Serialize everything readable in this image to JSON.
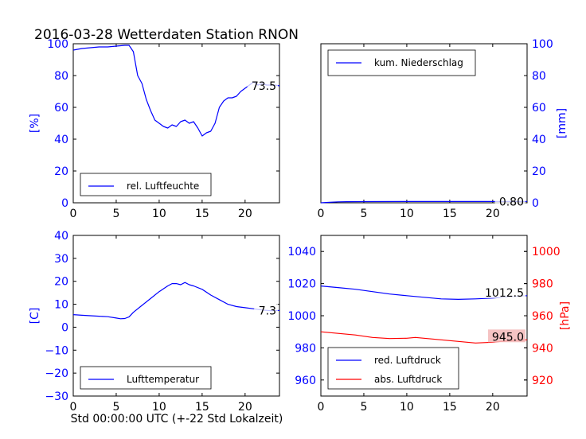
{
  "figure": {
    "title": "2016-03-28 Wetterdaten Station RNON",
    "xlabel": "Std 00:00:00 UTC (+-22 Std Lokalzeit)",
    "colors": {
      "blue": "#0000ff",
      "red": "#ff0000",
      "black": "#000000"
    }
  },
  "chart_data": [
    {
      "type": "line",
      "panel": "humidity",
      "ylabel": "[%]",
      "xlim": [
        0,
        24
      ],
      "ylim": [
        0,
        100
      ],
      "xticks": [
        0,
        5,
        10,
        15,
        20
      ],
      "yticks": [
        0,
        20,
        40,
        60,
        80,
        100
      ],
      "legend_position": "lower-left",
      "last_value_label": "73.5",
      "series": [
        {
          "name": "rel. Luftfeuchte",
          "color": "#0000ff",
          "x": [
            0,
            1,
            2,
            3,
            4,
            5,
            6,
            6.5,
            7,
            7.5,
            8,
            8.5,
            9,
            9.5,
            10,
            10.5,
            11,
            11.5,
            12,
            12.5,
            13,
            13.5,
            14,
            14.5,
            15,
            15.5,
            16,
            16.5,
            17,
            17.5,
            18,
            18.5,
            19,
            19.5,
            20,
            20.5,
            21,
            21.5,
            22,
            22.5,
            23,
            23.5,
            24
          ],
          "y": [
            96,
            97,
            97.5,
            98,
            98,
            98.5,
            99,
            99,
            95,
            80,
            75,
            65,
            58,
            52,
            50,
            48,
            47,
            49,
            48,
            51,
            52,
            50,
            51,
            47,
            42,
            44,
            45,
            50,
            60,
            64,
            66,
            66,
            67,
            70,
            72,
            74,
            76,
            74,
            75,
            74,
            74,
            74,
            73.5
          ]
        }
      ]
    },
    {
      "type": "line",
      "panel": "precipitation",
      "ylabel": "[mm]",
      "xlim": [
        0,
        24
      ],
      "ylim": [
        0,
        100
      ],
      "xticks": [
        0,
        5,
        10,
        15,
        20
      ],
      "yticks": [
        0,
        20,
        40,
        60,
        80,
        100
      ],
      "legend_position": "top-left",
      "last_value_label": "0.80",
      "series": [
        {
          "name": "kum. Niederschlag",
          "color": "#0000ff",
          "x": [
            0,
            1,
            2,
            3,
            5,
            10,
            15,
            20,
            24
          ],
          "y": [
            0,
            0.3,
            0.6,
            0.7,
            0.75,
            0.78,
            0.8,
            0.8,
            0.8
          ]
        }
      ]
    },
    {
      "type": "line",
      "panel": "temperature",
      "ylabel": "[C]",
      "xlim": [
        0,
        24
      ],
      "ylim": [
        -30,
        40
      ],
      "xticks": [
        0,
        5,
        10,
        15,
        20
      ],
      "yticks": [
        -30,
        -20,
        -10,
        0,
        10,
        20,
        30,
        40
      ],
      "legend_position": "lower-left",
      "last_value_label": "7.3",
      "series": [
        {
          "name": "Lufttemperatur",
          "color": "#0000ff",
          "x": [
            0,
            1,
            2,
            3,
            4,
            5,
            5.5,
            6,
            6.5,
            7,
            8,
            9,
            10,
            11,
            11.5,
            12,
            12.5,
            13,
            13.5,
            14,
            15,
            16,
            17,
            18,
            19,
            20,
            21,
            22,
            23,
            24
          ],
          "y": [
            5.5,
            5.2,
            5,
            4.8,
            4.6,
            4,
            3.7,
            3.8,
            4.5,
            6.5,
            9.5,
            12.5,
            15.5,
            18,
            19,
            19,
            18.5,
            19.5,
            18.5,
            18,
            16.5,
            14,
            12,
            10,
            9,
            8.5,
            8,
            7.5,
            7.2,
            7.3
          ]
        }
      ]
    },
    {
      "type": "line",
      "panel": "pressure",
      "ylim": [
        950,
        1050
      ],
      "yticks": [
        960,
        980,
        1000,
        1020,
        1040
      ],
      "y2label": "[hPa]",
      "y2lim": [
        910,
        1010
      ],
      "y2ticks": [
        920,
        940,
        960,
        980,
        1000
      ],
      "xlim": [
        0,
        24
      ],
      "xticks": [
        0,
        5,
        10,
        15,
        20
      ],
      "legend_position": "lower-left",
      "last_value_labels": [
        "1012.5",
        "945.0"
      ],
      "series": [
        {
          "name": "red. Luftdruck",
          "color": "#0000ff",
          "axis": "left",
          "x": [
            0,
            2,
            4,
            6,
            8,
            10,
            12,
            14,
            16,
            18,
            20,
            22,
            24
          ],
          "y": [
            1018.5,
            1017.5,
            1016.5,
            1015,
            1013.5,
            1012.5,
            1011.5,
            1010.5,
            1010.2,
            1010.5,
            1011,
            1011.8,
            1012.5
          ]
        },
        {
          "name": "abs. Luftdruck",
          "color": "#ff0000",
          "axis": "right",
          "x": [
            0,
            2,
            4,
            6,
            8,
            10,
            11,
            12,
            14,
            16,
            18,
            20,
            22,
            24
          ],
          "y": [
            950,
            949,
            948,
            946.5,
            945.8,
            946,
            946.5,
            946,
            945,
            944,
            943,
            943.5,
            944.5,
            945
          ]
        }
      ]
    }
  ]
}
